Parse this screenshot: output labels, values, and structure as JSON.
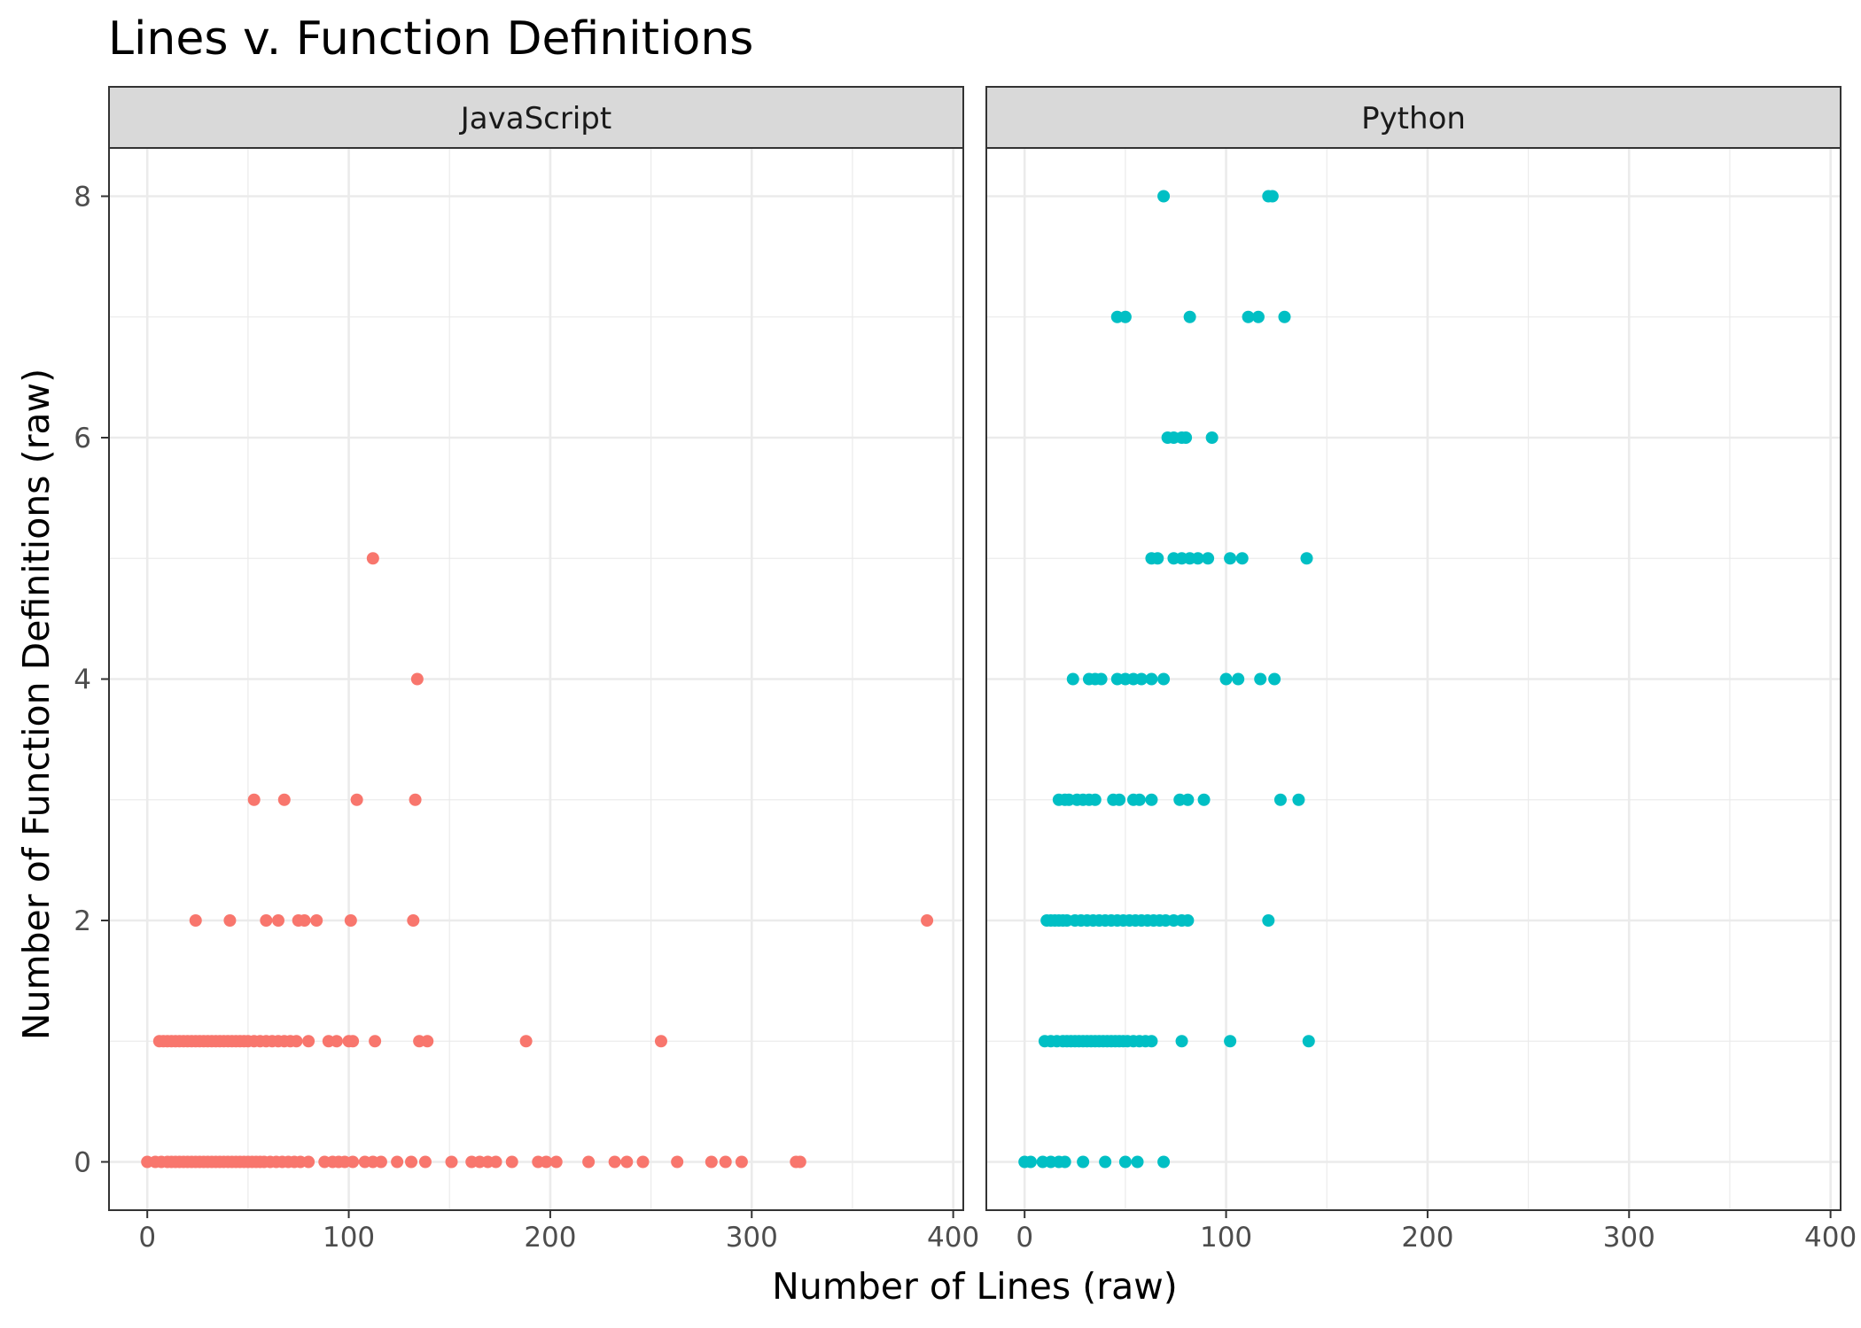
{
  "chart_data": {
    "type": "scatter",
    "title": "Lines v. Function Definitions",
    "xlabel": "Number of Lines (raw)",
    "ylabel": "Number of Function Definitions (raw)",
    "xlim": [
      -19,
      405
    ],
    "ylim": [
      -0.4,
      8.4
    ],
    "x_ticks": [
      0,
      100,
      200,
      300,
      400
    ],
    "y_ticks": [
      0,
      2,
      4,
      6,
      8
    ],
    "grid": true,
    "panels": [
      {
        "name": "JavaScript",
        "color": "#F8766D",
        "points": [
          [
            112,
            5
          ],
          [
            134,
            4
          ],
          [
            53,
            3
          ],
          [
            68,
            3
          ],
          [
            104,
            3
          ],
          [
            133,
            3
          ],
          [
            24,
            2
          ],
          [
            41,
            2
          ],
          [
            59,
            2
          ],
          [
            65,
            2
          ],
          [
            75,
            2
          ],
          [
            78,
            2
          ],
          [
            84,
            2
          ],
          [
            101,
            2
          ],
          [
            132,
            2
          ],
          [
            387,
            2
          ],
          [
            6,
            1
          ],
          [
            8,
            1
          ],
          [
            10,
            1
          ],
          [
            12,
            1
          ],
          [
            14,
            1
          ],
          [
            16,
            1
          ],
          [
            18,
            1
          ],
          [
            20,
            1
          ],
          [
            22,
            1
          ],
          [
            24,
            1
          ],
          [
            26,
            1
          ],
          [
            28,
            1
          ],
          [
            30,
            1
          ],
          [
            32,
            1
          ],
          [
            34,
            1
          ],
          [
            36,
            1
          ],
          [
            38,
            1
          ],
          [
            40,
            1
          ],
          [
            42,
            1
          ],
          [
            44,
            1
          ],
          [
            46,
            1
          ],
          [
            48,
            1
          ],
          [
            50,
            1
          ],
          [
            53,
            1
          ],
          [
            56,
            1
          ],
          [
            59,
            1
          ],
          [
            62,
            1
          ],
          [
            65,
            1
          ],
          [
            68,
            1
          ],
          [
            71,
            1
          ],
          [
            74,
            1
          ],
          [
            80,
            1
          ],
          [
            90,
            1
          ],
          [
            94,
            1
          ],
          [
            100,
            1
          ],
          [
            102,
            1
          ],
          [
            113,
            1
          ],
          [
            135,
            1
          ],
          [
            139,
            1
          ],
          [
            188,
            1
          ],
          [
            255,
            1
          ],
          [
            0,
            0
          ],
          [
            4,
            0
          ],
          [
            7,
            0
          ],
          [
            10,
            0
          ],
          [
            12,
            0
          ],
          [
            14,
            0
          ],
          [
            16,
            0
          ],
          [
            18,
            0
          ],
          [
            20,
            0
          ],
          [
            22,
            0
          ],
          [
            24,
            0
          ],
          [
            26,
            0
          ],
          [
            28,
            0
          ],
          [
            30,
            0
          ],
          [
            32,
            0
          ],
          [
            34,
            0
          ],
          [
            36,
            0
          ],
          [
            38,
            0
          ],
          [
            40,
            0
          ],
          [
            42,
            0
          ],
          [
            44,
            0
          ],
          [
            46,
            0
          ],
          [
            48,
            0
          ],
          [
            50,
            0
          ],
          [
            52,
            0
          ],
          [
            54,
            0
          ],
          [
            56,
            0
          ],
          [
            58,
            0
          ],
          [
            61,
            0
          ],
          [
            64,
            0
          ],
          [
            67,
            0
          ],
          [
            70,
            0
          ],
          [
            73,
            0
          ],
          [
            76,
            0
          ],
          [
            80,
            0
          ],
          [
            88,
            0
          ],
          [
            92,
            0
          ],
          [
            95,
            0
          ],
          [
            98,
            0
          ],
          [
            102,
            0
          ],
          [
            108,
            0
          ],
          [
            112,
            0
          ],
          [
            116,
            0
          ],
          [
            124,
            0
          ],
          [
            131,
            0
          ],
          [
            138,
            0
          ],
          [
            151,
            0
          ],
          [
            161,
            0
          ],
          [
            165,
            0
          ],
          [
            169,
            0
          ],
          [
            173,
            0
          ],
          [
            181,
            0
          ],
          [
            194,
            0
          ],
          [
            198,
            0
          ],
          [
            203,
            0
          ],
          [
            219,
            0
          ],
          [
            232,
            0
          ],
          [
            238,
            0
          ],
          [
            246,
            0
          ],
          [
            263,
            0
          ],
          [
            280,
            0
          ],
          [
            287,
            0
          ],
          [
            295,
            0
          ],
          [
            322,
            0
          ],
          [
            324,
            0
          ]
        ]
      },
      {
        "name": "Python",
        "color": "#00BFC4",
        "points": [
          [
            69,
            8
          ],
          [
            121,
            8
          ],
          [
            123,
            8
          ],
          [
            46,
            7
          ],
          [
            50,
            7
          ],
          [
            82,
            7
          ],
          [
            111,
            7
          ],
          [
            116,
            7
          ],
          [
            129,
            7
          ],
          [
            71,
            6
          ],
          [
            74,
            6
          ],
          [
            78,
            6
          ],
          [
            80,
            6
          ],
          [
            93,
            6
          ],
          [
            63,
            5
          ],
          [
            66,
            5
          ],
          [
            74,
            5
          ],
          [
            78,
            5
          ],
          [
            82,
            5
          ],
          [
            86,
            5
          ],
          [
            91,
            5
          ],
          [
            102,
            5
          ],
          [
            108,
            5
          ],
          [
            140,
            5
          ],
          [
            24,
            4
          ],
          [
            32,
            4
          ],
          [
            35,
            4
          ],
          [
            38,
            4
          ],
          [
            46,
            4
          ],
          [
            50,
            4
          ],
          [
            54,
            4
          ],
          [
            58,
            4
          ],
          [
            63,
            4
          ],
          [
            69,
            4
          ],
          [
            100,
            4
          ],
          [
            106,
            4
          ],
          [
            117,
            4
          ],
          [
            124,
            4
          ],
          [
            17,
            3
          ],
          [
            20,
            3
          ],
          [
            22,
            3
          ],
          [
            26,
            3
          ],
          [
            29,
            3
          ],
          [
            32,
            3
          ],
          [
            35,
            3
          ],
          [
            44,
            3
          ],
          [
            47,
            3
          ],
          [
            54,
            3
          ],
          [
            57,
            3
          ],
          [
            63,
            3
          ],
          [
            77,
            3
          ],
          [
            81,
            3
          ],
          [
            89,
            3
          ],
          [
            127,
            3
          ],
          [
            136,
            3
          ],
          [
            11,
            2
          ],
          [
            13,
            2
          ],
          [
            15,
            2
          ],
          [
            17,
            2
          ],
          [
            19,
            2
          ],
          [
            21,
            2
          ],
          [
            25,
            2
          ],
          [
            28,
            2
          ],
          [
            31,
            2
          ],
          [
            34,
            2
          ],
          [
            37,
            2
          ],
          [
            40,
            2
          ],
          [
            43,
            2
          ],
          [
            46,
            2
          ],
          [
            49,
            2
          ],
          [
            52,
            2
          ],
          [
            55,
            2
          ],
          [
            58,
            2
          ],
          [
            61,
            2
          ],
          [
            64,
            2
          ],
          [
            67,
            2
          ],
          [
            70,
            2
          ],
          [
            74,
            2
          ],
          [
            78,
            2
          ],
          [
            81,
            2
          ],
          [
            121,
            2
          ],
          [
            10,
            1
          ],
          [
            13,
            1
          ],
          [
            16,
            1
          ],
          [
            19,
            1
          ],
          [
            21,
            1
          ],
          [
            23,
            1
          ],
          [
            25,
            1
          ],
          [
            27,
            1
          ],
          [
            29,
            1
          ],
          [
            31,
            1
          ],
          [
            33,
            1
          ],
          [
            35,
            1
          ],
          [
            37,
            1
          ],
          [
            39,
            1
          ],
          [
            41,
            1
          ],
          [
            43,
            1
          ],
          [
            45,
            1
          ],
          [
            47,
            1
          ],
          [
            49,
            1
          ],
          [
            51,
            1
          ],
          [
            54,
            1
          ],
          [
            57,
            1
          ],
          [
            60,
            1
          ],
          [
            63,
            1
          ],
          [
            78,
            1
          ],
          [
            102,
            1
          ],
          [
            141,
            1
          ],
          [
            0,
            0
          ],
          [
            3,
            0
          ],
          [
            9,
            0
          ],
          [
            13,
            0
          ],
          [
            17,
            0
          ],
          [
            20,
            0
          ],
          [
            29,
            0
          ],
          [
            40,
            0
          ],
          [
            50,
            0
          ],
          [
            56,
            0
          ],
          [
            69,
            0
          ]
        ]
      }
    ]
  }
}
